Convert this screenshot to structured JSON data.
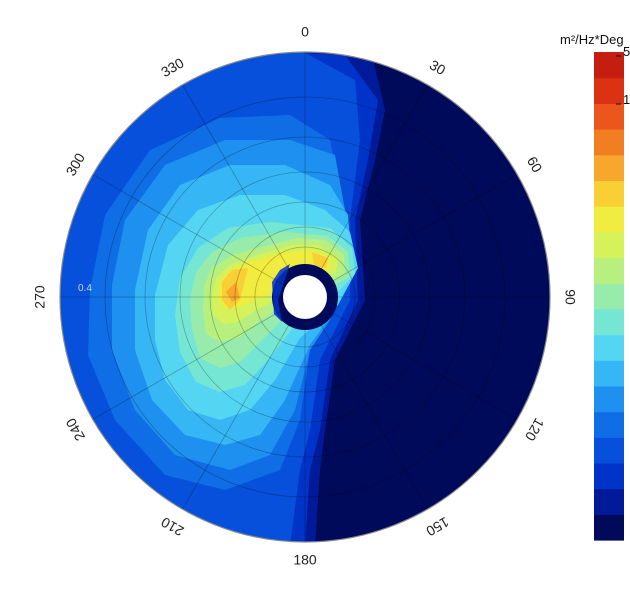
{
  "chart_data": {
    "type": "polar_contour",
    "angle_ticks": [
      "0",
      "30",
      "60",
      "90",
      "120",
      "150",
      "180",
      "210",
      "240",
      "270",
      "300",
      "330"
    ],
    "angle_tick_values": [
      0,
      30,
      60,
      90,
      120,
      150,
      180,
      210,
      240,
      270,
      300,
      330
    ],
    "radial_tick_labels": [
      "0.4"
    ],
    "colorbar": {
      "unit_label": "m²/Hz*Deg",
      "tick_labels": [
        "5",
        "1"
      ],
      "colors": [
        "#000a5a",
        "#001a9a",
        "#0033c8",
        "#0650dc",
        "#0f6ee6",
        "#1e90f0",
        "#37b6f6",
        "#54d6f2",
        "#76e6d4",
        "#97ecab",
        "#b8f080",
        "#d6f25a",
        "#f0ec40",
        "#f8cf34",
        "#f7a82c",
        "#f27e22",
        "#ea561b",
        "#dc3214",
        "#c51d10"
      ]
    },
    "peak": {
      "direction_deg": 270,
      "note_level": "yellow-orange"
    }
  }
}
